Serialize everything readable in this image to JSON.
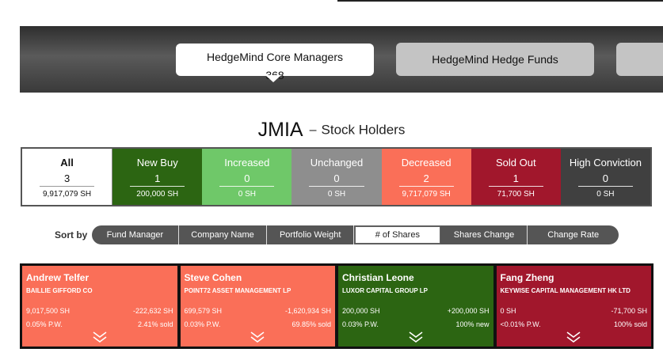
{
  "tabs": [
    {
      "label": "HedgeMind Core Managers",
      "count": "368",
      "active": true
    },
    {
      "label": "HedgeMind Hedge Funds",
      "active": false
    },
    {
      "label": "",
      "active": false
    }
  ],
  "title": {
    "ticker": "JMIA",
    "dash": "–",
    "subtitle": "Stock Holders"
  },
  "filters": [
    {
      "label": "All",
      "count": "3",
      "shares": "9,917,079 SH",
      "color": "#ffffff"
    },
    {
      "label": "New Buy",
      "count": "1",
      "shares": "200,000 SH",
      "color": "#2c6512"
    },
    {
      "label": "Increased",
      "count": "0",
      "shares": "0 SH",
      "color": "#6fc869"
    },
    {
      "label": "Unchanged",
      "count": "0",
      "shares": "0 SH",
      "color": "#8e8e8e"
    },
    {
      "label": "Decreased",
      "count": "2",
      "shares": "9,717,079 SH",
      "color": "#fa6f58"
    },
    {
      "label": "Sold Out",
      "count": "1",
      "shares": "71,700 SH",
      "color": "#a1172c"
    },
    {
      "label": "High Conviction",
      "count": "0",
      "shares": "0 SH",
      "color": "#404040"
    }
  ],
  "sort": {
    "label": "Sort by",
    "options": [
      "Fund Manager",
      "Company Name",
      "Portfolio Weight",
      "# of Shares",
      "Shares Change",
      "Change Rate"
    ],
    "selected": "# of Shares"
  },
  "holders": [
    {
      "name": "Andrew Telfer",
      "firm": "BAILLIE GIFFORD CO",
      "shares": "9,017,500 SH",
      "change": "-222,632 SH",
      "pw": "0.05% P.W.",
      "rate": "2.41% sold",
      "color": "#fa6f58",
      "icon": "double-chevron-down-icon"
    },
    {
      "name": "Steve Cohen",
      "firm": "POINT72 ASSET MANAGEMENT LP",
      "shares": "699,579 SH",
      "change": "-1,620,934 SH",
      "pw": "0.03% P.W.",
      "rate": "69.85% sold",
      "color": "#fa6f58",
      "icon": "double-chevron-down-icon"
    },
    {
      "name": "Christian Leone",
      "firm": "LUXOR CAPITAL GROUP LP",
      "shares": "200,000 SH",
      "change": "+200,000 SH",
      "pw": "0.03% P.W.",
      "rate": "100% new",
      "color": "#2c6512",
      "icon": "double-chevron-down-icon"
    },
    {
      "name": "Fang Zheng",
      "firm": "KEYWISE CAPITAL MANAGEMENT HK LTD",
      "shares": "0 SH",
      "change": "-71,700 SH",
      "pw": "<0.01% P.W.",
      "rate": "100% sold",
      "color": "#a1172c",
      "icon": "double-chevron-down-icon"
    }
  ]
}
